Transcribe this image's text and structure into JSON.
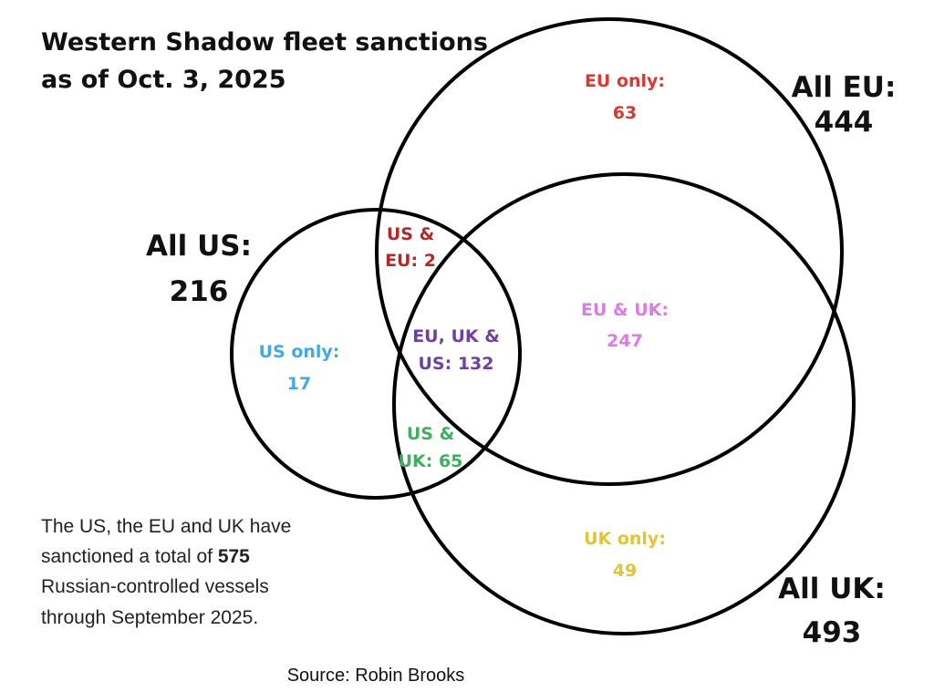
{
  "title": [
    "Western Shadow fleet sanctions",
    "as of Oct. 3, 2025"
  ],
  "sets": {
    "eu": {
      "label": "All EU:",
      "value": "444"
    },
    "us": {
      "label": "All US:",
      "value": "216"
    },
    "uk": {
      "label": "All UK:",
      "value": "493"
    }
  },
  "regions": {
    "eu_only": {
      "lines": [
        "EU only:",
        "63"
      ],
      "color": "#d63a32"
    },
    "us_eu": {
      "lines": [
        "US &",
        "EU: 2"
      ],
      "color": "#b12a2a"
    },
    "us_only": {
      "lines": [
        "US only:",
        "17"
      ],
      "color": "#45a8df"
    },
    "all_three": {
      "lines": [
        "EU, UK &",
        "US: 132"
      ],
      "color": "#7040a0"
    },
    "eu_uk": {
      "lines": [
        "EU & UK:",
        "247"
      ],
      "color": "#dc7ae6"
    },
    "us_uk": {
      "lines": [
        "US &",
        "UK: 65"
      ],
      "color": "#3fae5f"
    },
    "uk_only": {
      "lines": [
        "UK only:",
        "49"
      ],
      "color": "#e6c236"
    }
  },
  "summary": {
    "line1": "The US, the EU and UK have",
    "line2_pre": "sanctioned a total of ",
    "line2_bold": "575",
    "line3": "Russian-controlled vessels",
    "line4": "through September 2025."
  },
  "source": "Source: Robin Brooks"
}
